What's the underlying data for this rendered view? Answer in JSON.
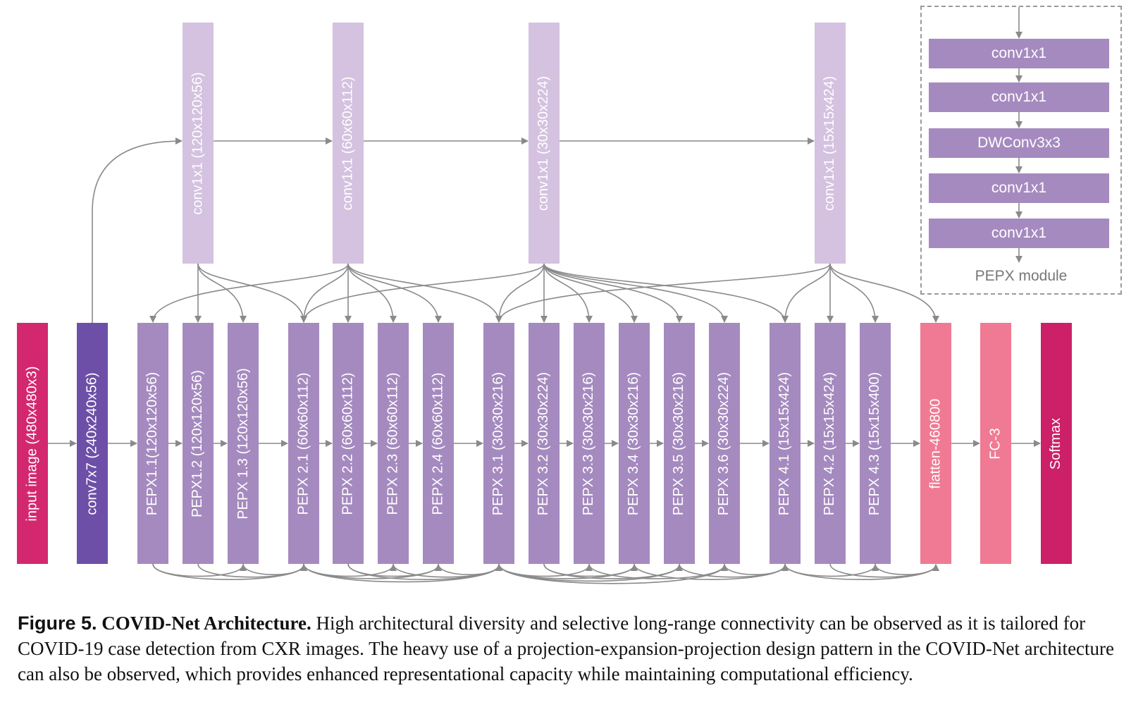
{
  "colors": {
    "input": "#d3286f",
    "conv7x7": "#6d4fa7",
    "pepx": "#a58abf",
    "proj": "#d4c2e0",
    "flatten": "#f07a93",
    "softmax": "#cc2068",
    "arrow": "#8a8a8a"
  },
  "main_blocks": [
    {
      "id": "input",
      "label": "input image (480x480x3)",
      "color_key": "input"
    },
    {
      "id": "conv7",
      "label": "conv7x7 (240x240x56)",
      "color_key": "conv7x7"
    },
    {
      "id": "p11",
      "label": "PEPX1.1(120x120x56)",
      "color_key": "pepx"
    },
    {
      "id": "p12",
      "label": "PEPX1.2 (120x120x56)",
      "color_key": "pepx"
    },
    {
      "id": "p13",
      "label": "PEPX 1.3 (120x120x56)",
      "color_key": "pepx"
    },
    {
      "id": "p21",
      "label": "PEPX 2.1 (60x60x112)",
      "color_key": "pepx"
    },
    {
      "id": "p22",
      "label": "PEPX 2.2 (60x60x112)",
      "color_key": "pepx"
    },
    {
      "id": "p23",
      "label": "PEPX 2.3 (60x60x112)",
      "color_key": "pepx"
    },
    {
      "id": "p24",
      "label": "PEPX 2.4 (60x60x112)",
      "color_key": "pepx"
    },
    {
      "id": "p31",
      "label": "PEPX 3.1 (30x30x216)",
      "color_key": "pepx"
    },
    {
      "id": "p32",
      "label": "PEPX 3.2 (30x30x224)",
      "color_key": "pepx"
    },
    {
      "id": "p33",
      "label": "PEPX 3.3 (30x30x216)",
      "color_key": "pepx"
    },
    {
      "id": "p34",
      "label": "PEPX 3.4 (30x30x216)",
      "color_key": "pepx"
    },
    {
      "id": "p35",
      "label": "PEPX 3.5 (30x30x216)",
      "color_key": "pepx"
    },
    {
      "id": "p36",
      "label": "PEPX 3.6 (30x30x224)",
      "color_key": "pepx"
    },
    {
      "id": "p41",
      "label": "PEPX 4.1 (15x15x424)",
      "color_key": "pepx"
    },
    {
      "id": "p42",
      "label": "PEPX 4.2 (15x15x424)",
      "color_key": "pepx"
    },
    {
      "id": "p43",
      "label": "PEPX 4.3 (15x15x400)",
      "color_key": "pepx"
    },
    {
      "id": "flatten",
      "label": "flatten-460800",
      "color_key": "flatten"
    },
    {
      "id": "fc",
      "label": "FC-3",
      "color_key": "flatten"
    },
    {
      "id": "softmax",
      "label": "Softmax",
      "color_key": "softmax"
    }
  ],
  "projection_blocks": [
    {
      "id": "c1",
      "label": "conv1x1 (120x120x56)"
    },
    {
      "id": "c2",
      "label": "conv1x1 (60x60x112)"
    },
    {
      "id": "c3",
      "label": "conv1x1 (30x30x224)"
    },
    {
      "id": "c4",
      "label": "conv1x1 (15x15x424)"
    }
  ],
  "pepx_module": {
    "title": "PEPX module",
    "layers": [
      "conv1x1",
      "conv1x1",
      "DWConv3x3",
      "conv1x1",
      "conv1x1"
    ]
  },
  "caption": {
    "figure": "Figure 5.",
    "title": "COVID-Net Architecture.",
    "text": "High architectural diversity and selective long-range connectivity can be observed as it is tailored for COVID-19 case detection from CXR images. The heavy use of a projection-expansion-projection design pattern in the COVID-Net architecture can also be observed, which provides enhanced representational capacity while maintaining computational efficiency."
  }
}
